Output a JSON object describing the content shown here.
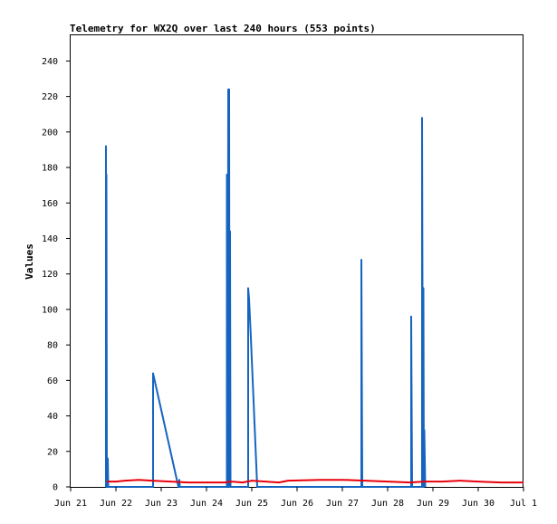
{
  "chart_data": {
    "type": "line",
    "title": "Telemetry for WX2Q over last 240 hours (553 points)",
    "xlabel": "",
    "ylabel": "Values",
    "xlim": [
      0,
      10
    ],
    "ylim": [
      0,
      255
    ],
    "x_ticks": [
      {
        "value": 0,
        "label": "Jun 21"
      },
      {
        "value": 1,
        "label": "Jun 22"
      },
      {
        "value": 2,
        "label": "Jun 23"
      },
      {
        "value": 3,
        "label": "Jun 24"
      },
      {
        "value": 4,
        "label": "Jun 25"
      },
      {
        "value": 5,
        "label": "Jun 26"
      },
      {
        "value": 6,
        "label": "Jun 27"
      },
      {
        "value": 7,
        "label": "Jun 28"
      },
      {
        "value": 8,
        "label": "Jun 29"
      },
      {
        "value": 9,
        "label": "Jun 30"
      },
      {
        "value": 10,
        "label": "Jul 1"
      }
    ],
    "y_ticks": [
      0,
      20,
      40,
      60,
      80,
      100,
      120,
      140,
      160,
      180,
      200,
      220,
      240
    ],
    "grid": false,
    "series": [
      {
        "color": "#1565c0",
        "points": [
          [
            0.78,
            0
          ],
          [
            0.78,
            192
          ],
          [
            0.79,
            0
          ],
          [
            0.79,
            176
          ],
          [
            0.8,
            0
          ],
          [
            0.82,
            16
          ],
          [
            0.83,
            0
          ],
          [
            1.82,
            0
          ],
          [
            1.82,
            64
          ],
          [
            2.38,
            0
          ],
          [
            2.4,
            4
          ],
          [
            2.41,
            0
          ],
          [
            3.45,
            0
          ],
          [
            3.45,
            176
          ],
          [
            3.47,
            0
          ],
          [
            3.48,
            224
          ],
          [
            3.5,
            0
          ],
          [
            3.5,
            224
          ],
          [
            3.51,
            0
          ],
          [
            3.52,
            144
          ],
          [
            3.53,
            0
          ],
          [
            3.92,
            0
          ],
          [
            3.92,
            112
          ],
          [
            3.94,
            106
          ],
          [
            3.96,
            95
          ],
          [
            3.98,
            84
          ],
          [
            4.0,
            72
          ],
          [
            4.02,
            60
          ],
          [
            4.04,
            48
          ],
          [
            4.06,
            36
          ],
          [
            4.08,
            24
          ],
          [
            4.1,
            12
          ],
          [
            4.12,
            0
          ],
          [
            6.42,
            0
          ],
          [
            6.42,
            128
          ],
          [
            6.44,
            0
          ],
          [
            7.52,
            0
          ],
          [
            7.52,
            96
          ],
          [
            7.54,
            0
          ],
          [
            7.76,
            0
          ],
          [
            7.76,
            208
          ],
          [
            7.78,
            0
          ],
          [
            7.79,
            112
          ],
          [
            7.8,
            0
          ],
          [
            7.81,
            32
          ],
          [
            7.82,
            16
          ],
          [
            7.83,
            0
          ]
        ]
      },
      {
        "color": "#e8000b",
        "points": [
          [
            0.8,
            3
          ],
          [
            1.0,
            3
          ],
          [
            1.2,
            3.5
          ],
          [
            1.5,
            4
          ],
          [
            1.8,
            3.5
          ],
          [
            2.2,
            3
          ],
          [
            2.6,
            2.5
          ],
          [
            3.0,
            2.5
          ],
          [
            3.4,
            2.5
          ],
          [
            3.55,
            3
          ],
          [
            3.8,
            2.5
          ],
          [
            4.0,
            3.5
          ],
          [
            4.3,
            3
          ],
          [
            4.6,
            2.5
          ],
          [
            4.8,
            3.5
          ],
          [
            5.5,
            4
          ],
          [
            6.0,
            4
          ],
          [
            6.5,
            3.5
          ],
          [
            7.0,
            3
          ],
          [
            7.5,
            2.5
          ],
          [
            7.8,
            3
          ],
          [
            8.2,
            3
          ],
          [
            8.6,
            3.5
          ],
          [
            9.0,
            3
          ],
          [
            9.5,
            2.5
          ],
          [
            10.0,
            2.5
          ]
        ]
      }
    ]
  }
}
